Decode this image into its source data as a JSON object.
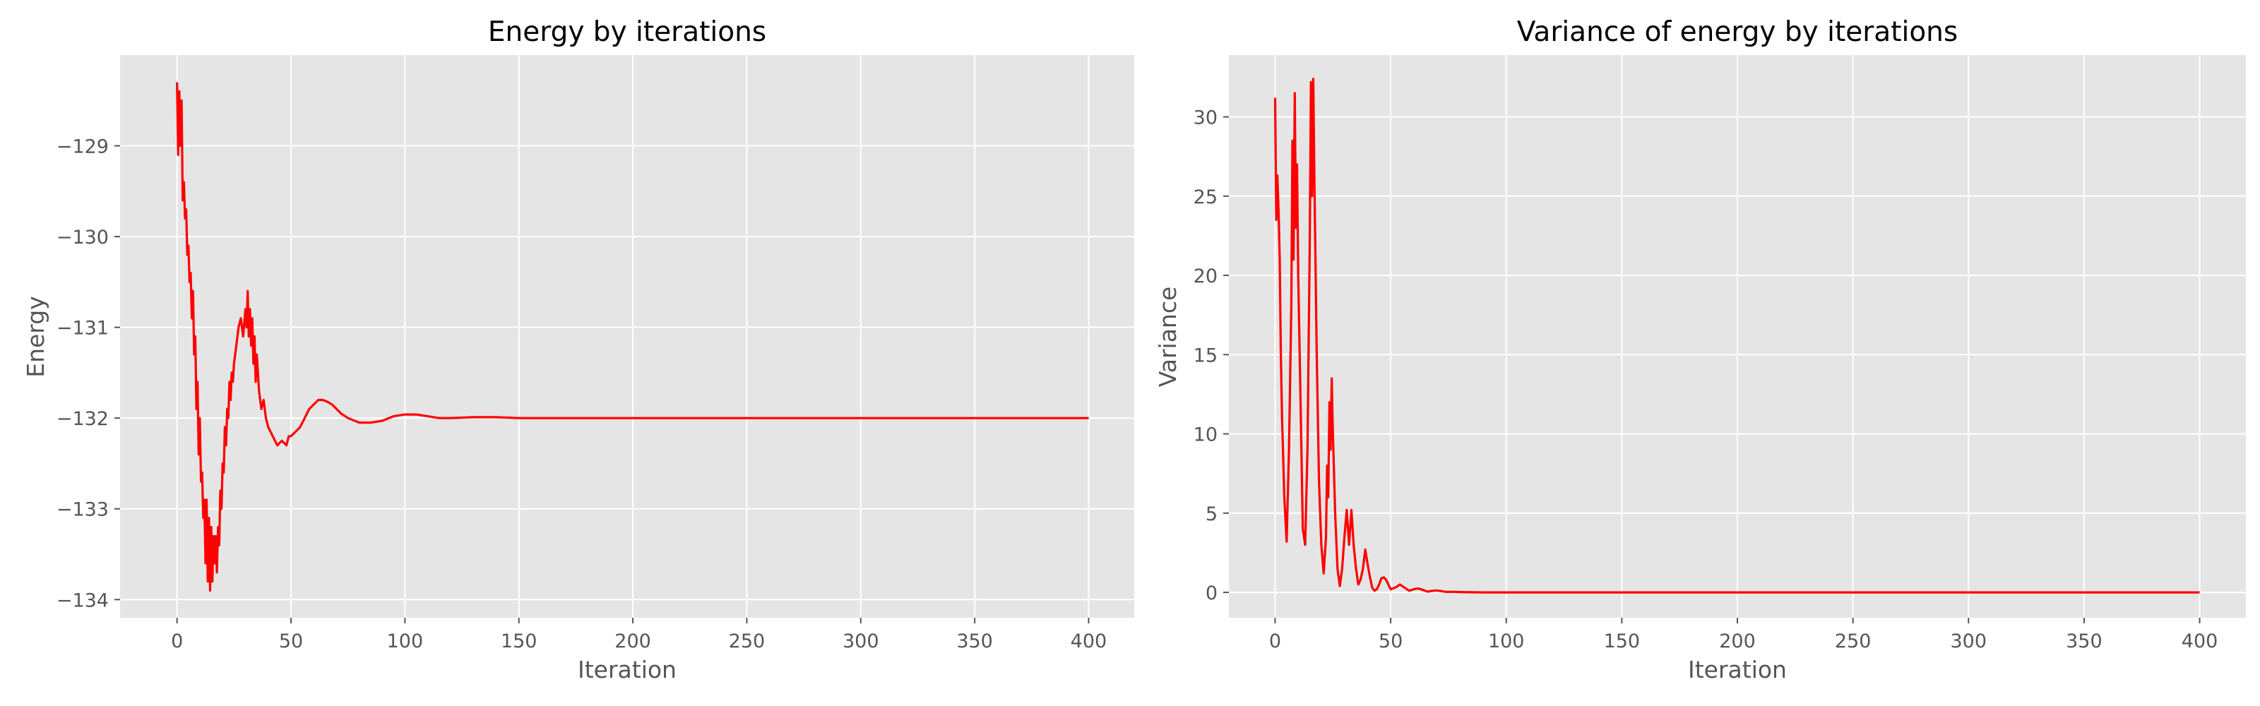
{
  "colors": {
    "background": "#ffffff",
    "plot_background": "#e5e5e5",
    "grid": "#ffffff",
    "series": "#ff0000",
    "tick_text": "#555555"
  },
  "chart_data": [
    {
      "type": "line",
      "title": "Energy by iterations",
      "xlabel": "Iteration",
      "ylabel": "Energy",
      "xlim": [
        -25,
        420
      ],
      "ylim": [
        -134.2,
        -128.0
      ],
      "xticks": [
        0,
        50,
        100,
        150,
        200,
        250,
        300,
        350,
        400
      ],
      "yticks": [
        -134,
        -133,
        -132,
        -131,
        -130,
        -129
      ],
      "ytick_labels": [
        "−134",
        "−133",
        "−132",
        "−131",
        "−130",
        "−129"
      ],
      "grid": true,
      "series": [
        {
          "color": "#ff0000",
          "x": [
            0,
            0.5,
            1,
            1.5,
            2,
            2.5,
            3,
            3.5,
            4,
            4.5,
            5,
            5.5,
            6,
            6.5,
            7,
            7.5,
            8,
            8.5,
            9,
            9.5,
            10,
            10.5,
            11,
            11.5,
            12,
            12.5,
            13,
            13.5,
            14,
            14.5,
            15,
            15.5,
            16,
            16.5,
            17,
            17.5,
            18,
            18.5,
            19,
            19.5,
            20,
            20.5,
            21,
            21.5,
            22,
            22.5,
            23,
            23.5,
            24,
            24.5,
            25,
            26,
            27,
            28,
            29,
            30,
            30.5,
            31,
            31.5,
            32,
            32.5,
            33,
            33.5,
            34,
            34.5,
            35,
            36,
            37,
            38,
            39,
            40,
            42,
            44,
            46,
            48,
            49,
            50,
            52,
            54,
            56,
            58,
            60,
            62,
            64,
            66,
            68,
            70,
            72,
            75,
            80,
            85,
            90,
            95,
            100,
            105,
            110,
            115,
            120,
            130,
            140,
            150,
            200,
            250,
            300,
            350,
            400
          ],
          "y": [
            -128.3,
            -129.1,
            -128.4,
            -129.0,
            -128.5,
            -129.6,
            -129.4,
            -129.8,
            -129.7,
            -130.2,
            -130.1,
            -130.5,
            -130.4,
            -130.9,
            -130.6,
            -131.3,
            -131.1,
            -131.9,
            -131.6,
            -132.4,
            -132.0,
            -132.7,
            -132.6,
            -133.1,
            -132.9,
            -133.6,
            -132.9,
            -133.8,
            -133.1,
            -133.9,
            -133.2,
            -133.8,
            -133.3,
            -133.6,
            -133.3,
            -133.7,
            -133.2,
            -133.4,
            -132.8,
            -133.0,
            -132.5,
            -132.6,
            -132.1,
            -132.3,
            -131.9,
            -132.0,
            -131.6,
            -131.8,
            -131.5,
            -131.6,
            -131.4,
            -131.2,
            -131.0,
            -130.9,
            -131.1,
            -130.8,
            -131.0,
            -130.6,
            -131.1,
            -130.8,
            -131.2,
            -130.9,
            -131.4,
            -131.1,
            -131.6,
            -131.3,
            -131.7,
            -131.9,
            -131.8,
            -132.0,
            -132.1,
            -132.2,
            -132.3,
            -132.25,
            -132.3,
            -132.2,
            -132.2,
            -132.15,
            -132.1,
            -132.0,
            -131.9,
            -131.85,
            -131.8,
            -131.8,
            -131.82,
            -131.85,
            -131.9,
            -131.95,
            -132.0,
            -132.05,
            -132.05,
            -132.03,
            -131.98,
            -131.96,
            -131.96,
            -131.98,
            -132.0,
            -132.0,
            -131.99,
            -131.99,
            -132.0,
            -132.0,
            -132.0,
            -132.0,
            -132.0,
            -132.0
          ]
        }
      ]
    },
    {
      "type": "line",
      "title": "Variance of energy by iterations",
      "xlabel": "Iteration",
      "ylabel": "Variance",
      "xlim": [
        -20,
        420
      ],
      "ylim": [
        -1.6,
        33.9
      ],
      "xticks": [
        0,
        50,
        100,
        150,
        200,
        250,
        300,
        350,
        400
      ],
      "yticks": [
        0,
        5,
        10,
        15,
        20,
        25,
        30
      ],
      "ytick_labels": [
        "0",
        "5",
        "10",
        "15",
        "20",
        "25",
        "30"
      ],
      "grid": true,
      "series": [
        {
          "color": "#ff0000",
          "x": [
            0,
            0.5,
            1,
            1.5,
            2,
            2.5,
            3,
            4,
            5,
            6,
            7,
            7.5,
            8,
            8.5,
            9,
            9.5,
            10,
            11,
            12,
            13,
            14,
            15,
            15.5,
            16,
            16.5,
            17,
            18,
            19,
            20,
            21,
            22,
            22.5,
            23,
            23.5,
            24,
            24.5,
            25,
            26,
            27,
            28,
            29,
            30,
            31,
            32,
            33,
            34,
            35,
            36,
            37,
            38,
            39,
            40,
            41,
            42,
            43,
            44,
            45,
            46,
            47,
            48,
            49,
            50,
            52,
            54,
            56,
            58,
            60,
            62,
            64,
            66,
            68,
            70,
            72,
            74,
            76,
            78,
            80,
            85,
            90,
            100,
            150,
            200,
            250,
            300,
            350,
            400
          ],
          "y": [
            31.2,
            23.5,
            26.3,
            24.0,
            21.0,
            15.0,
            11.0,
            6.0,
            3.2,
            9.0,
            18.0,
            28.5,
            21.0,
            31.5,
            23.0,
            27.0,
            20.0,
            12.0,
            4.0,
            3.0,
            9.0,
            22.0,
            32.2,
            25.0,
            32.4,
            26.0,
            15.0,
            7.0,
            3.0,
            1.2,
            3.5,
            8.0,
            6.0,
            12.0,
            9.0,
            13.5,
            10.0,
            5.0,
            1.5,
            0.4,
            1.5,
            3.5,
            5.2,
            3.0,
            5.2,
            3.0,
            1.5,
            0.5,
            0.8,
            1.5,
            2.7,
            1.8,
            1.0,
            0.3,
            0.1,
            0.2,
            0.5,
            0.9,
            0.95,
            0.8,
            0.5,
            0.2,
            0.3,
            0.5,
            0.3,
            0.1,
            0.2,
            0.25,
            0.15,
            0.05,
            0.1,
            0.12,
            0.08,
            0.03,
            0.04,
            0.03,
            0.02,
            0.01,
            0.0,
            0.0,
            0.0,
            0.0,
            0.0,
            0.0,
            0.0,
            0.0
          ]
        }
      ]
    }
  ]
}
